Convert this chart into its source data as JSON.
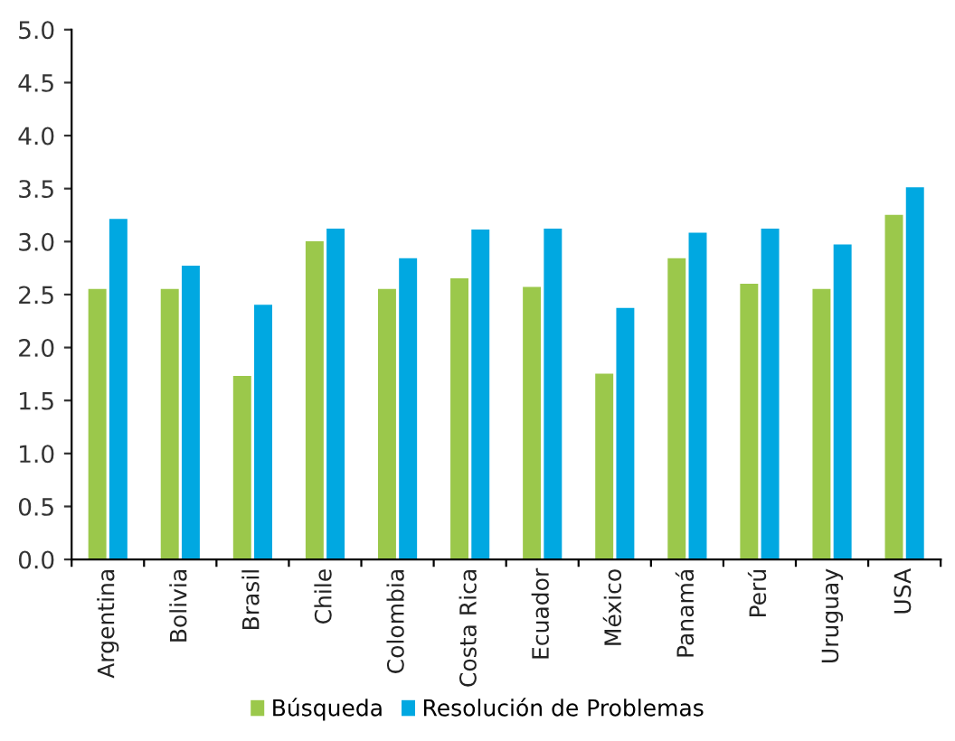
{
  "chart_data": {
    "type": "bar",
    "categories": [
      "Argentina",
      "Bolivia",
      "Brasil",
      "Chile",
      "Colombia",
      "Costa Rica",
      "Ecuador",
      "México",
      "Panamá",
      "Perú",
      "Uruguay",
      "USA"
    ],
    "series": [
      {
        "name": "Búsqueda",
        "color": "#9bc84b",
        "values": [
          2.56,
          2.56,
          1.74,
          3.01,
          2.56,
          2.66,
          2.58,
          1.76,
          2.85,
          2.61,
          2.56,
          3.26
        ]
      },
      {
        "name": "Resolución de Problemas",
        "color": "#00a8e1",
        "values": [
          3.22,
          2.78,
          2.41,
          3.13,
          2.85,
          3.12,
          3.13,
          2.38,
          3.09,
          3.13,
          2.98,
          3.52
        ]
      }
    ],
    "ylim": [
      0,
      5.0
    ],
    "yticks": [
      {
        "value": 0,
        "label": "0.0"
      },
      {
        "value": 0.5,
        "label": "0.5"
      },
      {
        "value": 1.0,
        "label": "1.0"
      },
      {
        "value": 1.5,
        "label": "1.5"
      },
      {
        "value": 2.0,
        "label": "2.0"
      },
      {
        "value": 2.5,
        "label": "2.5"
      },
      {
        "value": 3.0,
        "label": "3.0"
      },
      {
        "value": 3.5,
        "label": "3.5"
      },
      {
        "value": 4.0,
        "label": "4.0"
      },
      {
        "value": 4.5,
        "label": "4.5"
      },
      {
        "value": 5.0,
        "label": "5.0"
      }
    ],
    "grid": false,
    "legend": "bottom"
  }
}
